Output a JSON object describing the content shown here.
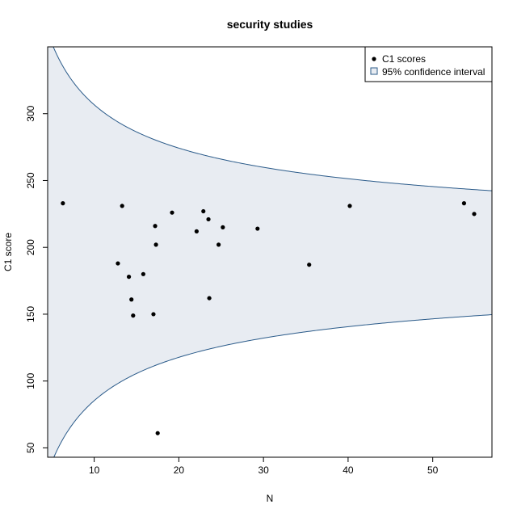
{
  "chart_data": {
    "type": "scatter",
    "title": "security studies",
    "xlabel": "N",
    "ylabel": "C1 score",
    "xlim": [
      4.5,
      57
    ],
    "ylim": [
      43,
      350
    ],
    "xticks": [
      10,
      20,
      30,
      40,
      50
    ],
    "yticks": [
      50,
      100,
      150,
      200,
      250,
      300
    ],
    "grid": false,
    "legend_position": "top-right",
    "series": [
      {
        "name": "C1 scores",
        "points": [
          {
            "x": 6.3,
            "y": 233
          },
          {
            "x": 12.8,
            "y": 188
          },
          {
            "x": 13.3,
            "y": 231
          },
          {
            "x": 14.1,
            "y": 178
          },
          {
            "x": 14.4,
            "y": 161
          },
          {
            "x": 14.6,
            "y": 149
          },
          {
            "x": 15.8,
            "y": 180
          },
          {
            "x": 17.0,
            "y": 150
          },
          {
            "x": 17.2,
            "y": 216
          },
          {
            "x": 17.3,
            "y": 202
          },
          {
            "x": 17.5,
            "y": 61
          },
          {
            "x": 19.2,
            "y": 226
          },
          {
            "x": 22.1,
            "y": 212
          },
          {
            "x": 22.9,
            "y": 227
          },
          {
            "x": 23.5,
            "y": 221
          },
          {
            "x": 23.6,
            "y": 162
          },
          {
            "x": 24.7,
            "y": 202
          },
          {
            "x": 25.2,
            "y": 215
          },
          {
            "x": 29.3,
            "y": 214
          },
          {
            "x": 35.4,
            "y": 187
          },
          {
            "x": 40.2,
            "y": 231
          },
          {
            "x": 53.7,
            "y": 233
          },
          {
            "x": 54.9,
            "y": 225
          }
        ]
      },
      {
        "name": "95% confidence interval",
        "center": 196,
        "half_width_constant": 350
      }
    ],
    "colors": {
      "points": "#000000",
      "band_fill": "#e8ecf2",
      "band_line": "#2b5b8a"
    }
  }
}
